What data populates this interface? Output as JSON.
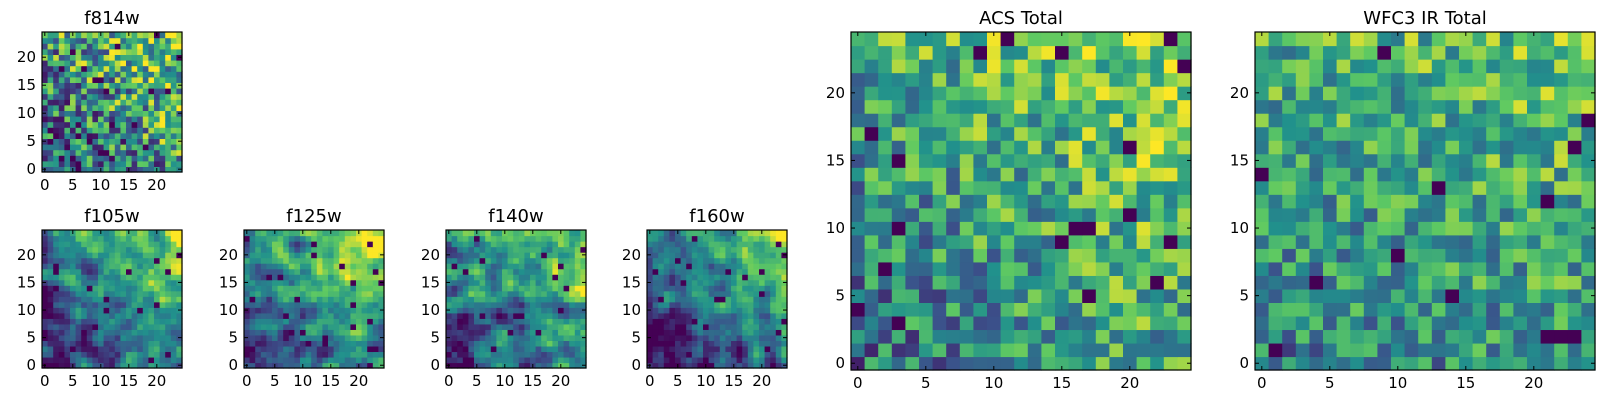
{
  "figure": {
    "type": "heatmap",
    "colormap": "viridis",
    "grid_size": 25,
    "colormap_stops": [
      "#440154",
      "#3b528b",
      "#21918c",
      "#5ec962",
      "#fde725"
    ]
  },
  "chart_data": [
    {
      "type": "heatmap",
      "title": "f814w",
      "xlabel": "",
      "ylabel": "",
      "xlim": [
        0,
        24
      ],
      "ylim": [
        0,
        24
      ],
      "xticks": [
        "0",
        "5",
        "10",
        "15",
        "20"
      ],
      "yticks": [
        "0",
        "5",
        "10",
        "15",
        "20"
      ],
      "pattern": {
        "seed": 11,
        "noise": 0.85,
        "smooth": 0,
        "grad": 0.55,
        "base": 0.54,
        "gx": 0.45,
        "gy": 0.55,
        "lowfrac": 0.02
      }
    },
    {
      "type": "heatmap",
      "title": "f105w",
      "xlabel": "",
      "ylabel": "",
      "xlim": [
        0,
        24
      ],
      "ylim": [
        0,
        24
      ],
      "xticks": [
        "0",
        "5",
        "10",
        "15",
        "20"
      ],
      "yticks": [
        "0",
        "5",
        "10",
        "15",
        "20"
      ],
      "pattern": {
        "seed": 23,
        "noise": 0.7,
        "smooth": 1,
        "grad": 0.8,
        "base": 0.45,
        "gx": 0.5,
        "gy": 0.5,
        "lowfrac": 0.03
      }
    },
    {
      "type": "heatmap",
      "title": "f125w",
      "xlabel": "",
      "ylabel": "",
      "xlim": [
        0,
        24
      ],
      "ylim": [
        0,
        24
      ],
      "xticks": [
        "0",
        "5",
        "10",
        "15",
        "20"
      ],
      "yticks": [
        "0",
        "5",
        "10",
        "15",
        "20"
      ],
      "pattern": {
        "seed": 37,
        "noise": 0.7,
        "smooth": 1,
        "grad": 0.75,
        "base": 0.5,
        "gx": 0.5,
        "gy": 0.5,
        "lowfrac": 0.03
      }
    },
    {
      "type": "heatmap",
      "title": "f140w",
      "xlabel": "",
      "ylabel": "",
      "xlim": [
        0,
        24
      ],
      "ylim": [
        0,
        24
      ],
      "xticks": [
        "0",
        "5",
        "10",
        "15",
        "20"
      ],
      "yticks": [
        "0",
        "5",
        "10",
        "15",
        "20"
      ],
      "pattern": {
        "seed": 51,
        "noise": 0.75,
        "smooth": 1,
        "grad": 0.6,
        "base": 0.5,
        "gx": 0.5,
        "gy": 0.5,
        "lowfrac": 0.03
      }
    },
    {
      "type": "heatmap",
      "title": "f160w",
      "xlabel": "",
      "ylabel": "",
      "xlim": [
        0,
        24
      ],
      "ylim": [
        0,
        24
      ],
      "xticks": [
        "0",
        "5",
        "10",
        "15",
        "20"
      ],
      "yticks": [
        "0",
        "5",
        "10",
        "15",
        "20"
      ],
      "pattern": {
        "seed": 67,
        "noise": 0.65,
        "smooth": 1,
        "grad": 0.9,
        "base": 0.4,
        "gx": 0.5,
        "gy": 0.5,
        "lowfrac": 0.03
      }
    },
    {
      "type": "heatmap",
      "title": "ACS Total",
      "xlabel": "",
      "ylabel": "",
      "xlim": [
        0,
        24
      ],
      "ylim": [
        0,
        24
      ],
      "xticks": [
        "0",
        "5",
        "10",
        "15",
        "20"
      ],
      "yticks": [
        "0",
        "5",
        "10",
        "15",
        "20"
      ],
      "pattern": {
        "seed": 79,
        "noise": 0.6,
        "smooth": 0,
        "grad": 0.45,
        "base": 0.6,
        "gx": 0.5,
        "gy": 0.5,
        "lowfrac": 0.025
      }
    },
    {
      "type": "heatmap",
      "title": "WFC3 IR Total",
      "xlabel": "",
      "ylabel": "",
      "xlim": [
        0,
        24
      ],
      "ylim": [
        0,
        24
      ],
      "xticks": [
        "0",
        "5",
        "10",
        "15",
        "20"
      ],
      "yticks": [
        "0",
        "5",
        "10",
        "15",
        "20"
      ],
      "pattern": {
        "seed": 97,
        "noise": 0.55,
        "smooth": 0,
        "grad": 0.3,
        "base": 0.58,
        "gx": 0.35,
        "gy": 0.65,
        "lowfrac": 0.025
      }
    }
  ]
}
